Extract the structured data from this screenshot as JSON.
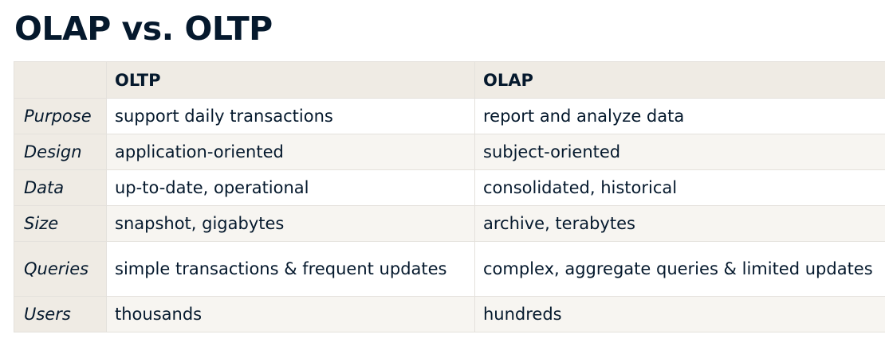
{
  "title": "OLAP vs. OLTP",
  "table": {
    "headers": [
      "",
      "OLTP",
      "OLAP"
    ],
    "rows": [
      {
        "label": "Purpose",
        "oltp": "support daily transactions",
        "olap": "report and analyze data"
      },
      {
        "label": "Design",
        "oltp": "application-oriented",
        "olap": "subject-oriented"
      },
      {
        "label": "Data",
        "oltp": "up-to-date, operational",
        "olap": "consolidated, historical"
      },
      {
        "label": "Size",
        "oltp": "snapshot, gigabytes",
        "olap": "archive, terabytes"
      },
      {
        "label": "Queries",
        "oltp": "simple transactions & frequent updates",
        "olap": "complex, aggregate queries & limited updates"
      },
      {
        "label": "Users",
        "oltp": "thousands",
        "olap": "hundreds"
      }
    ]
  },
  "colors": {
    "text": "#05192d",
    "header_bg": "#efebe4",
    "alt_row_bg": "#f7f5f1",
    "border": "#e4e1dc"
  }
}
